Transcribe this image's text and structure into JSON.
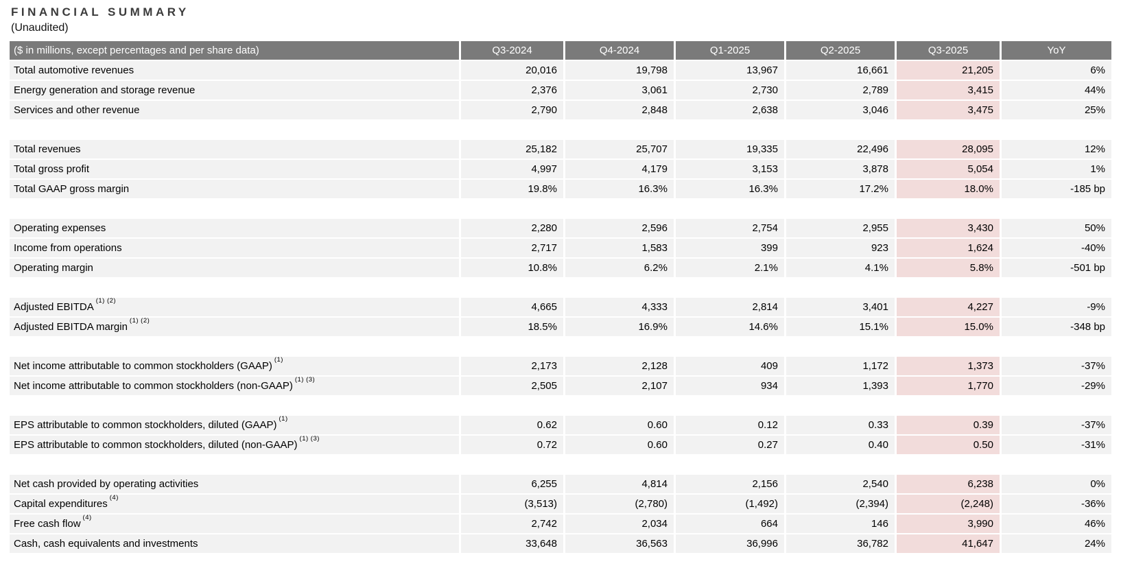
{
  "page": {
    "title": "FINANCIAL SUMMARY",
    "subtitle": "(Unaudited)"
  },
  "table": {
    "label_header": "($ in millions, except percentages and per share data)",
    "columns": [
      "Q3-2024",
      "Q4-2024",
      "Q1-2025",
      "Q2-2025",
      "Q3-2025",
      "YoY"
    ],
    "highlight_column": "Q3-2025",
    "sections": [
      {
        "rows": [
          {
            "label": "Total automotive revenues",
            "sup": "",
            "values": [
              "20,016",
              "19,798",
              "13,967",
              "16,661",
              "21,205",
              "6%"
            ]
          },
          {
            "label": "Energy generation and storage revenue",
            "sup": "",
            "values": [
              "2,376",
              "3,061",
              "2,730",
              "2,789",
              "3,415",
              "44%"
            ]
          },
          {
            "label": "Services and other revenue",
            "sup": "",
            "values": [
              "2,790",
              "2,848",
              "2,638",
              "3,046",
              "3,475",
              "25%"
            ]
          }
        ]
      },
      {
        "rows": [
          {
            "label": "Total revenues",
            "sup": "",
            "values": [
              "25,182",
              "25,707",
              "19,335",
              "22,496",
              "28,095",
              "12%"
            ]
          },
          {
            "label": "Total gross profit",
            "sup": "",
            "values": [
              "4,997",
              "4,179",
              "3,153",
              "3,878",
              "5,054",
              "1%"
            ]
          },
          {
            "label": "Total GAAP gross margin",
            "sup": "",
            "values": [
              "19.8%",
              "16.3%",
              "16.3%",
              "17.2%",
              "18.0%",
              "-185 bp"
            ]
          }
        ]
      },
      {
        "rows": [
          {
            "label": "Operating expenses",
            "sup": "",
            "values": [
              "2,280",
              "2,596",
              "2,754",
              "2,955",
              "3,430",
              "50%"
            ]
          },
          {
            "label": "Income from operations",
            "sup": "",
            "values": [
              "2,717",
              "1,583",
              "399",
              "923",
              "1,624",
              "-40%"
            ]
          },
          {
            "label": "Operating margin",
            "sup": "",
            "values": [
              "10.8%",
              "6.2%",
              "2.1%",
              "4.1%",
              "5.8%",
              "-501 bp"
            ]
          }
        ]
      },
      {
        "rows": [
          {
            "label": "Adjusted EBITDA",
            "sup": "(1) (2)",
            "values": [
              "4,665",
              "4,333",
              "2,814",
              "3,401",
              "4,227",
              "-9%"
            ]
          },
          {
            "label": "Adjusted EBITDA margin",
            "sup": "(1) (2)",
            "values": [
              "18.5%",
              "16.9%",
              "14.6%",
              "15.1%",
              "15.0%",
              "-348 bp"
            ]
          }
        ]
      },
      {
        "rows": [
          {
            "label": "Net income attributable to common stockholders (GAAP)",
            "sup": "(1)",
            "values": [
              "2,173",
              "2,128",
              "409",
              "1,172",
              "1,373",
              "-37%"
            ]
          },
          {
            "label": "Net income attributable to common stockholders (non-GAAP)",
            "sup": "(1) (3)",
            "values": [
              "2,505",
              "2,107",
              "934",
              "1,393",
              "1,770",
              "-29%"
            ]
          }
        ]
      },
      {
        "rows": [
          {
            "label": "EPS attributable to common stockholders, diluted (GAAP)",
            "sup": "(1)",
            "values": [
              "0.62",
              "0.60",
              "0.12",
              "0.33",
              "0.39",
              "-37%"
            ]
          },
          {
            "label": "EPS attributable to common stockholders, diluted (non-GAAP)",
            "sup": "(1) (3)",
            "values": [
              "0.72",
              "0.60",
              "0.27",
              "0.40",
              "0.50",
              "-31%"
            ]
          }
        ]
      },
      {
        "rows": [
          {
            "label": "Net cash provided by operating activities",
            "sup": "",
            "values": [
              "6,255",
              "4,814",
              "2,156",
              "2,540",
              "6,238",
              "0%"
            ]
          },
          {
            "label": "Capital expenditures",
            "sup": "(4)",
            "values": [
              "(3,513)",
              "(2,780)",
              "(1,492)",
              "(2,394)",
              "(2,248)",
              "-36%"
            ]
          },
          {
            "label": "Free cash flow",
            "sup": "(4)",
            "values": [
              "2,742",
              "2,034",
              "664",
              "146",
              "3,990",
              "46%"
            ]
          },
          {
            "label": "Cash, cash equivalents and investments",
            "sup": "",
            "values": [
              "33,648",
              "36,563",
              "36,996",
              "36,782",
              "41,647",
              "24%"
            ]
          }
        ]
      }
    ]
  },
  "colors": {
    "header_bg": "#7a7a7a",
    "header_text": "#ffffff",
    "row_bg": "#f2f2f2",
    "highlight_bg": "#f2dcdb",
    "text": "#000000"
  }
}
